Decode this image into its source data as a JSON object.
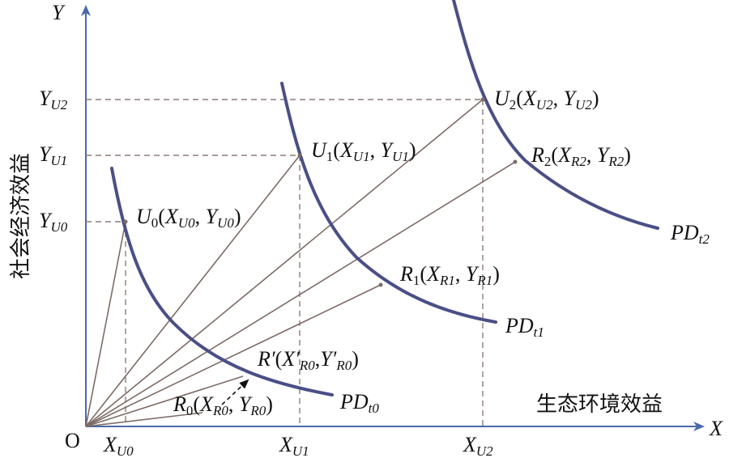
{
  "axes": {
    "x_name": "X",
    "y_name": "Y",
    "origin": "O",
    "x_caption": "生态环境效益",
    "y_caption": "社会经济效益",
    "x_ticks": [
      {
        "main": "X",
        "sub": "U0"
      },
      {
        "main": "X",
        "sub": "U1"
      },
      {
        "main": "X",
        "sub": "U2"
      }
    ],
    "y_ticks": [
      {
        "main": "Y",
        "sub": "U0"
      },
      {
        "main": "Y",
        "sub": "U1"
      },
      {
        "main": "Y",
        "sub": "U2"
      }
    ]
  },
  "curves": [
    {
      "main": "PD",
      "sub": "t0"
    },
    {
      "main": "PD",
      "sub": "t1"
    },
    {
      "main": "PD",
      "sub": "t2"
    }
  ],
  "points": {
    "U0": {
      "name": "U",
      "name_sub": "0",
      "x": "X",
      "x_sub": "U0",
      "y": "Y",
      "y_sub": "U0",
      "open": "(",
      "sep": ", ",
      "close": ")"
    },
    "U1": {
      "name": "U",
      "name_sub": "1",
      "x": "X",
      "x_sub": "U1",
      "y": "Y",
      "y_sub": "U1",
      "open": "(",
      "sep": ", ",
      "close": ")"
    },
    "U2": {
      "name": "U",
      "name_sub": "2",
      "x": "X",
      "x_sub": "U2",
      "y": "Y",
      "y_sub": "U2",
      "open": "(",
      "sep": ", ",
      "close": ")"
    },
    "R0": {
      "name": "R",
      "name_sub": "0",
      "x": "X",
      "x_sub": "R0",
      "y": "Y",
      "y_sub": "R0",
      "open": "(",
      "sep": ", ",
      "close": ")"
    },
    "R1": {
      "name": "R",
      "name_sub": "1",
      "x": "X",
      "x_sub": "R1",
      "y": "Y",
      "y_sub": "R1",
      "open": "(",
      "sep": ", ",
      "close": ")"
    },
    "R2": {
      "name": "R",
      "name_sub": "2",
      "x": "X",
      "x_sub": "R2",
      "y": "Y",
      "y_sub": "R2",
      "open": "(",
      "sep": ", ",
      "close": ")"
    },
    "Rp": {
      "name": "R′",
      "x": "X′",
      "x_sub": "R0",
      "y": "Y′",
      "y_sub": "R0",
      "open": "(",
      "sep": ",",
      "close": ")"
    }
  },
  "colors": {
    "axis": "#4a69a8",
    "curve": "#4a4f86",
    "rays": "#7d6b66",
    "guides": "#8c7d7a"
  }
}
